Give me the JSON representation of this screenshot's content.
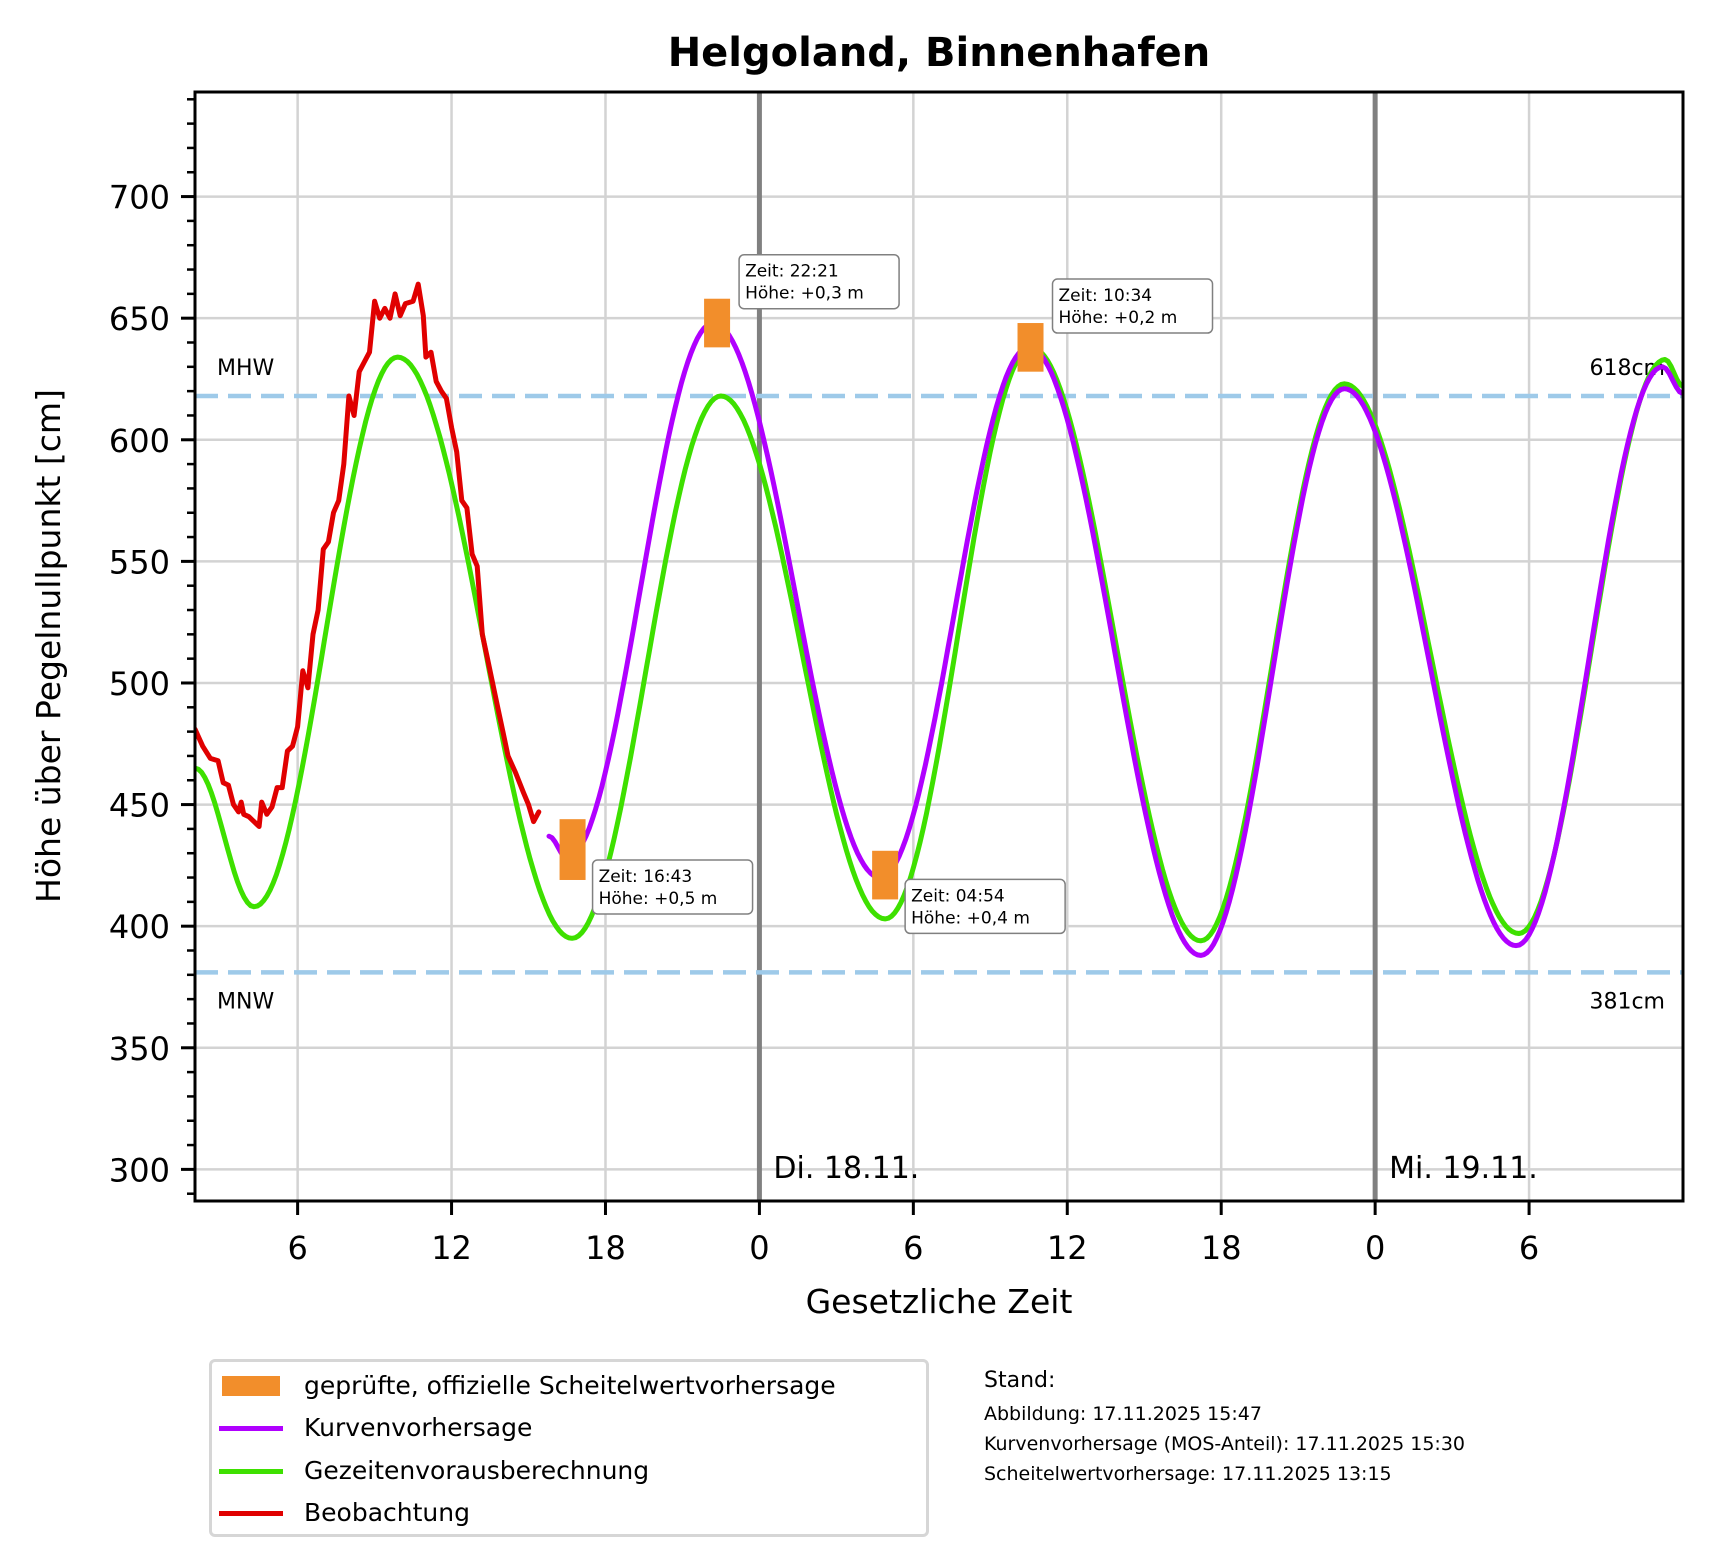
{
  "chart_data": {
    "type": "line",
    "title": "Helgoland, Binnenhafen",
    "xlabel": "Gesetzliche Zeit",
    "ylabel": "Höhe über Pegelnullpunkt [cm]",
    "x_unit": "hours since Mo. 17.11. 00:00",
    "xlim": [
      2,
      60
    ],
    "ylim": [
      287,
      743
    ],
    "grid": true,
    "x_ticks": [
      {
        "value": 6,
        "label": "6"
      },
      {
        "value": 12,
        "label": "12"
      },
      {
        "value": 18,
        "label": "18"
      },
      {
        "value": 24,
        "label": "0"
      },
      {
        "value": 30,
        "label": "6"
      },
      {
        "value": 36,
        "label": "12"
      },
      {
        "value": 42,
        "label": "18"
      },
      {
        "value": 48,
        "label": "0"
      },
      {
        "value": 54,
        "label": "6"
      }
    ],
    "y_ticks": [
      {
        "value": 300,
        "label": "300"
      },
      {
        "value": 350,
        "label": "350"
      },
      {
        "value": 400,
        "label": "400"
      },
      {
        "value": 450,
        "label": "450"
      },
      {
        "value": 500,
        "label": "500"
      },
      {
        "value": 550,
        "label": "550"
      },
      {
        "value": 600,
        "label": "600"
      },
      {
        "value": 650,
        "label": "650"
      },
      {
        "value": 700,
        "label": "700"
      }
    ],
    "day_markers": [
      {
        "x": 24,
        "label": "Di. 18.11."
      },
      {
        "x": 48,
        "label": "Mi. 19.11."
      }
    ],
    "reference_lines": [
      {
        "name": "MHW",
        "value": 618,
        "label_left": "MHW",
        "label_right": "618cm",
        "color": "#9ecae9"
      },
      {
        "name": "MNW",
        "value": 381,
        "label_left": "MNW",
        "label_right": "381cm",
        "color": "#9ecae9"
      }
    ],
    "series": [
      {
        "name": "Gezeitenvorausberechnung",
        "color": "#3ee000",
        "style": "smooth-extrema",
        "points": [
          [
            2.0,
            465
          ],
          [
            4.3,
            408
          ],
          [
            9.9,
            634
          ],
          [
            16.7,
            395
          ],
          [
            22.5,
            618
          ],
          [
            28.9,
            403
          ],
          [
            34.6,
            638
          ],
          [
            41.2,
            394
          ],
          [
            46.8,
            623
          ],
          [
            53.6,
            397
          ],
          [
            59.3,
            633
          ],
          [
            60.0,
            622
          ]
        ]
      },
      {
        "name": "Kurvenvorhersage",
        "color": "#b000ff",
        "style": "smooth-extrema",
        "points": [
          [
            15.8,
            437
          ],
          [
            16.5,
            428
          ],
          [
            22.2,
            648
          ],
          [
            28.7,
            420
          ],
          [
            34.5,
            638
          ],
          [
            41.2,
            388
          ],
          [
            46.8,
            621
          ],
          [
            53.5,
            392
          ],
          [
            59.2,
            630
          ],
          [
            60.0,
            619
          ]
        ]
      },
      {
        "name": "Beobachtung",
        "color": "#e00000",
        "style": "raw",
        "points": [
          [
            2.0,
            481
          ],
          [
            2.3,
            474
          ],
          [
            2.6,
            469
          ],
          [
            2.9,
            468
          ],
          [
            3.1,
            459
          ],
          [
            3.3,
            458
          ],
          [
            3.5,
            450
          ],
          [
            3.7,
            447
          ],
          [
            3.8,
            451
          ],
          [
            3.9,
            446
          ],
          [
            4.1,
            445
          ],
          [
            4.3,
            443
          ],
          [
            4.5,
            441
          ],
          [
            4.6,
            451
          ],
          [
            4.8,
            446
          ],
          [
            5.0,
            449
          ],
          [
            5.2,
            457
          ],
          [
            5.4,
            457
          ],
          [
            5.6,
            472
          ],
          [
            5.8,
            474
          ],
          [
            6.0,
            482
          ],
          [
            6.2,
            505
          ],
          [
            6.4,
            498
          ],
          [
            6.6,
            520
          ],
          [
            6.8,
            530
          ],
          [
            7.0,
            555
          ],
          [
            7.2,
            558
          ],
          [
            7.4,
            570
          ],
          [
            7.6,
            575
          ],
          [
            7.8,
            590
          ],
          [
            8.0,
            618
          ],
          [
            8.2,
            610
          ],
          [
            8.4,
            628
          ],
          [
            8.6,
            632
          ],
          [
            8.8,
            636
          ],
          [
            9.0,
            657
          ],
          [
            9.2,
            650
          ],
          [
            9.4,
            654
          ],
          [
            9.6,
            650
          ],
          [
            9.8,
            660
          ],
          [
            10.0,
            651
          ],
          [
            10.2,
            656
          ],
          [
            10.5,
            657
          ],
          [
            10.7,
            664
          ],
          [
            10.9,
            651
          ],
          [
            11.0,
            634
          ],
          [
            11.2,
            636
          ],
          [
            11.4,
            624
          ],
          [
            11.6,
            620
          ],
          [
            11.8,
            617
          ],
          [
            12.0,
            605
          ],
          [
            12.2,
            595
          ],
          [
            12.4,
            575
          ],
          [
            12.6,
            572
          ],
          [
            12.8,
            553
          ],
          [
            13.0,
            548
          ],
          [
            13.2,
            520
          ],
          [
            13.4,
            510
          ],
          [
            13.6,
            500
          ],
          [
            13.8,
            490
          ],
          [
            14.0,
            480
          ],
          [
            14.2,
            470
          ],
          [
            14.5,
            463
          ],
          [
            14.8,
            455
          ],
          [
            15.0,
            450
          ],
          [
            15.2,
            443
          ],
          [
            15.4,
            447
          ]
        ]
      }
    ],
    "scheitelwerte": [
      {
        "x": 16.717,
        "y": 431,
        "range": [
          419,
          444
        ],
        "label_time": "Zeit: 16:43",
        "label_height": "Höhe: +0,5 m",
        "label_side": "below-right"
      },
      {
        "x": 22.35,
        "y": 648,
        "range": [
          638,
          658
        ],
        "label_time": "Zeit: 22:21",
        "label_height": "Höhe: +0,3 m",
        "label_side": "above-right"
      },
      {
        "x": 28.9,
        "y": 421,
        "range": [
          411,
          431
        ],
        "label_time": "Zeit: 04:54",
        "label_height": "Höhe: +0,4 m",
        "label_side": "below-right"
      },
      {
        "x": 34.567,
        "y": 638,
        "range": [
          628,
          648
        ],
        "label_time": "Zeit: 10:34",
        "label_height": "Höhe: +0,2 m",
        "label_side": "above-right"
      }
    ],
    "scheitelwert_color": "#f28e2b",
    "legend": {
      "placement": "bottom-left",
      "entries": [
        {
          "label": "geprüfte, offizielle Scheitelwertvorhersage",
          "color": "#f28e2b",
          "kind": "patch"
        },
        {
          "label": "Kurvenvorhersage",
          "color": "#b000ff",
          "kind": "line"
        },
        {
          "label": "Gezeitenvorausberechnung",
          "color": "#3ee000",
          "kind": "line"
        },
        {
          "label": "Beobachtung",
          "color": "#e00000",
          "kind": "line"
        }
      ]
    }
  },
  "stand": {
    "heading": "Stand:",
    "lines": [
      "Abbildung: 17.11.2025 15:47",
      "Kurvenvorhersage (MOS-Anteil): 17.11.2025 15:30",
      "Scheitelwertvorhersage: 17.11.2025 13:15"
    ]
  }
}
